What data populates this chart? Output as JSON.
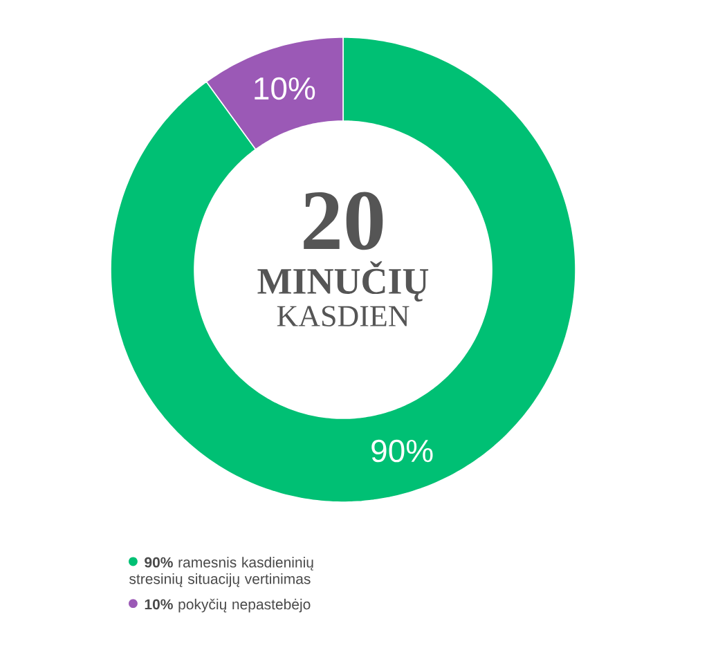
{
  "chart_data": {
    "type": "donut",
    "categories": [
      "**90%** ramesnis kasdieninių stresinių situacijų vertinimas",
      "**10%** pokyčių nepastebėjo"
    ],
    "values": [
      90,
      10
    ],
    "colors": [
      "#00c074",
      "#9b59b6"
    ],
    "value_labels": [
      "90%",
      "10%"
    ],
    "annotations": [
      "20",
      "MINUČIŲ",
      "KASDIEN"
    ],
    "legend": "bottom left"
  }
}
